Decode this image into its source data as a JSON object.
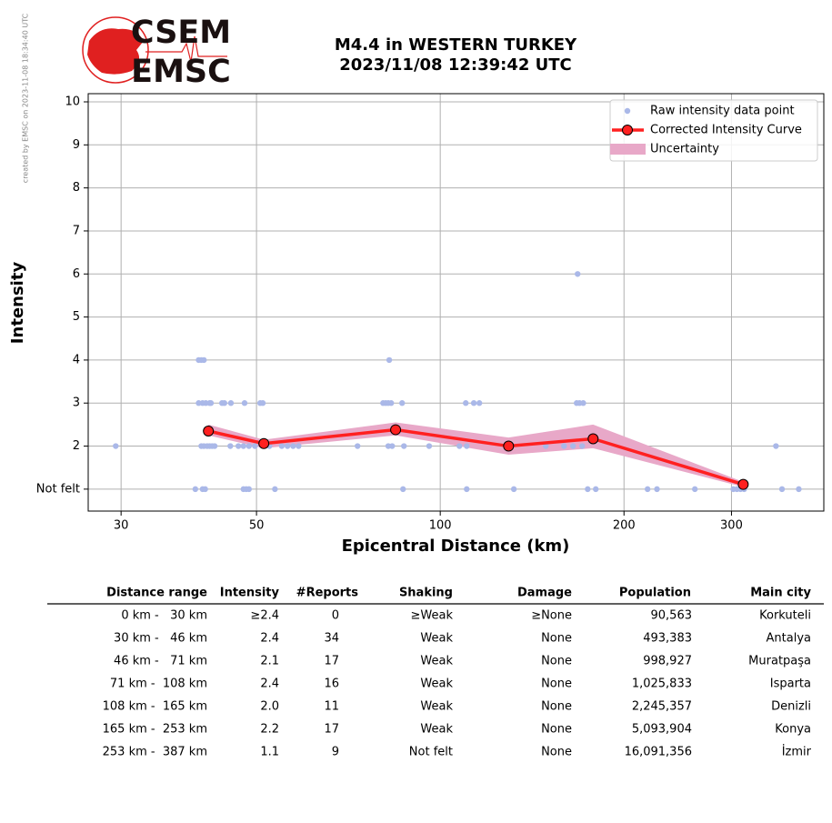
{
  "credit": "created by EMSC on 2023-11-08 18:34:40 UTC",
  "logo": {
    "top": "CSEM",
    "bottom": "EMSC"
  },
  "chart_data": {
    "type": "scatter-line",
    "title": "M4.4 in WESTERN TURKEY",
    "subtitle": "2023/11/08 12:39:42 UTC",
    "x_label": "Epicentral Distance (km)",
    "y_label": "Intensity",
    "x_log": true,
    "grid": true,
    "legend": "upper right",
    "xlim": [
      26.5,
      425
    ],
    "xticks": [
      30,
      50,
      100,
      200,
      300
    ],
    "ylim": [
      0.49,
      10.19
    ],
    "yticks": [
      {
        "value": 1,
        "label": "Not felt"
      },
      2,
      3,
      4,
      5,
      6,
      7,
      8,
      9,
      10
    ],
    "series": [
      {
        "name": "Raw intensity data point",
        "color": "#aab8e8",
        "x": [
          29.4,
          40.2,
          40.6,
          41.0,
          40.2,
          40.8,
          41.3,
          41.9,
          42.1,
          43.9,
          44.3,
          45.4,
          47.8,
          50.7,
          51.2,
          40.6,
          41.0,
          41.5,
          41.9,
          42.3,
          42.7,
          45.3,
          46.7,
          47.6,
          48.6,
          49.7,
          51.4,
          52.5,
          55.0,
          56.2,
          57.4,
          58.6,
          73.2,
          39.7,
          40.8,
          41.2,
          47.6,
          48.1,
          48.6,
          53.6,
          82.5,
          80.6,
          81.4,
          82.2,
          83.1,
          86.6,
          82.2,
          83.4,
          87.2,
          95.9,
          107.5,
          110.5,
          86.9,
          110.5,
          110.1,
          113.5,
          115.9,
          148.9,
          159.5,
          165.0,
          170.8,
          167.9,
          167.3,
          169.1,
          171.5,
          132.0,
          174.4,
          179.8,
          218.6,
          226.5,
          261.3,
          354.8,
          302.1,
          306.2,
          310.4,
          314.7,
          363.0,
          386.7
        ],
        "values": [
          2,
          4,
          4,
          4,
          3,
          3,
          3,
          3,
          3,
          3,
          3,
          3,
          3,
          3,
          3,
          2,
          2,
          2,
          2,
          2,
          2,
          2,
          2,
          2,
          2,
          2,
          2,
          2,
          2,
          2,
          2,
          2,
          2,
          1,
          1,
          1,
          1,
          1,
          1,
          1,
          4,
          3,
          3,
          3,
          3,
          3,
          2,
          2,
          2,
          2,
          2,
          2,
          1,
          1,
          3,
          3,
          3,
          2,
          2,
          2,
          2,
          6,
          3,
          3,
          3,
          1,
          1,
          1,
          1,
          1,
          1,
          2,
          1,
          1,
          1,
          1,
          1,
          1
        ]
      },
      {
        "name": "Corrected Intensity Curve",
        "color": "#ff2020",
        "x": [
          41.7,
          51.4,
          84.5,
          129.4,
          178.0,
          313.6
        ],
        "values": [
          2.35,
          2.06,
          2.38,
          2.0,
          2.17,
          1.11
        ]
      },
      {
        "name": "Uncertainty",
        "color": "#e8a8c8",
        "lower": [
          2.25,
          1.95,
          2.25,
          1.8,
          1.95,
          1.05
        ],
        "upper": [
          2.5,
          2.15,
          2.55,
          2.2,
          2.5,
          1.17
        ]
      }
    ]
  },
  "table": {
    "columns": [
      "Distance range",
      "Intensity",
      "#Reports",
      "Shaking",
      "Damage",
      "Population",
      "Main city"
    ],
    "rows": [
      [
        "0 km -   30 km",
        "≥2.4",
        "0",
        "≥Weak",
        "≥None",
        "90,563",
        "Korkuteli"
      ],
      [
        "30 km -   46 km",
        "2.4",
        "34",
        "Weak",
        "None",
        "493,383",
        "Antalya"
      ],
      [
        "46 km -   71 km",
        "2.1",
        "17",
        "Weak",
        "None",
        "998,927",
        "Muratpaşa"
      ],
      [
        "71 km -  108 km",
        "2.4",
        "16",
        "Weak",
        "None",
        "1,025,833",
        "Isparta"
      ],
      [
        "108 km -  165 km",
        "2.0",
        "11",
        "Weak",
        "None",
        "2,245,357",
        "Denizli"
      ],
      [
        "165 km -  253 km",
        "2.2",
        "17",
        "Weak",
        "None",
        "5,093,904",
        "Konya"
      ],
      [
        "253 km -  387 km",
        "1.1",
        "9",
        "Not felt",
        "None",
        "16,091,356",
        "İzmir"
      ]
    ]
  }
}
